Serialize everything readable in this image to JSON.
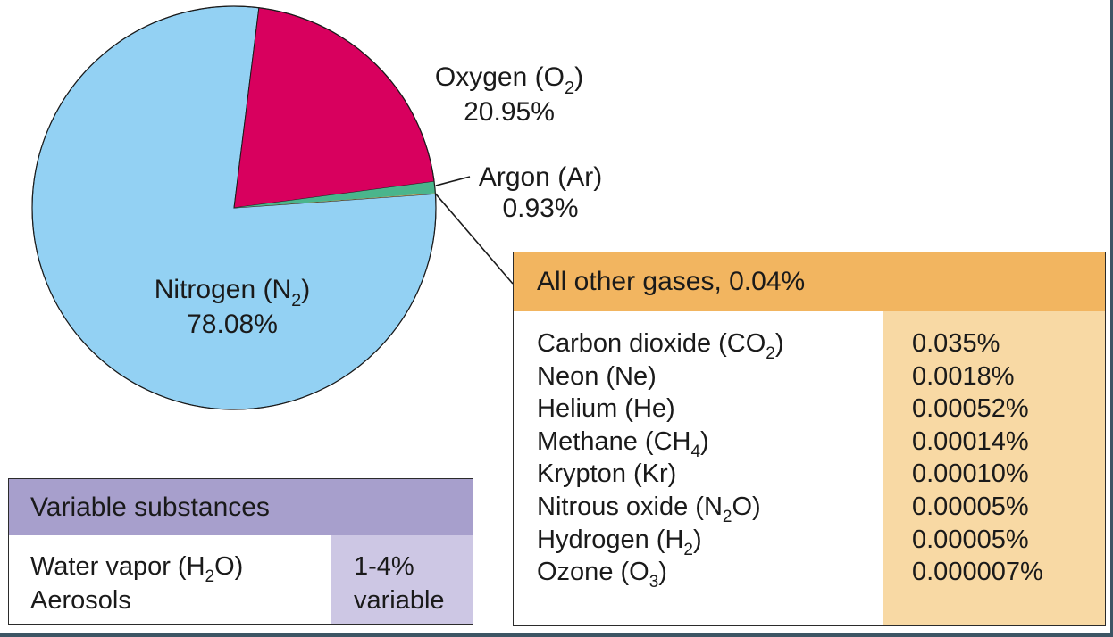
{
  "chart_data": {
    "type": "pie",
    "slices": [
      {
        "name": "Nitrogen (N2)",
        "label": "Nitrogen (N",
        "sub": "2",
        "tail": ")",
        "value": 78.08,
        "value_label": "78.08%",
        "color": "#93d1f3"
      },
      {
        "name": "Oxygen (O2)",
        "label": "Oxygen (O",
        "sub": "2",
        "tail": ")",
        "value": 20.95,
        "value_label": "20.95%",
        "color": "#d8005e"
      },
      {
        "name": "Argon (Ar)",
        "label": "Argon (Ar)",
        "sub": "",
        "tail": "",
        "value": 0.93,
        "value_label": "0.93%",
        "color": "#4ab58c"
      },
      {
        "name": "All other gases",
        "label": "",
        "sub": "",
        "tail": "",
        "value": 0.04,
        "value_label": "0.04%",
        "color": "#f2b560"
      }
    ]
  },
  "other_gases": {
    "title": "All other gases, 0.04%",
    "header_color": "#f2b560",
    "value_column_color": "#f8d9a4",
    "rows": [
      {
        "name": "Carbon dioxide (CO",
        "sub": "2",
        "tail": ")",
        "value": "0.035%"
      },
      {
        "name": "Neon (Ne)",
        "sub": "",
        "tail": "",
        "value": "0.0018%"
      },
      {
        "name": "Helium (He)",
        "sub": "",
        "tail": "",
        "value": "0.00052%"
      },
      {
        "name": "Methane (CH",
        "sub": "4",
        "tail": ")",
        "value": "0.00014%"
      },
      {
        "name": "Krypton (Kr)",
        "sub": "",
        "tail": "",
        "value": "0.00010%"
      },
      {
        "name": "Nitrous oxide (N",
        "sub": "2",
        "tail": "O)",
        "value": "0.00005%"
      },
      {
        "name": "Hydrogen (H",
        "sub": "2",
        "tail": ")",
        "value": "0.00005%"
      },
      {
        "name": "Ozone (O",
        "sub": "3",
        "tail": ")",
        "value": "0.000007%"
      }
    ]
  },
  "variable_substances": {
    "title": "Variable substances",
    "header_color": "#a79fcc",
    "value_column_color": "#cdc7e4",
    "rows": [
      {
        "name": "Water vapor (H",
        "sub": "2",
        "tail": "O)",
        "value": "1-4%"
      },
      {
        "name": "Aerosols",
        "sub": "",
        "tail": "",
        "value": "variable"
      }
    ]
  }
}
